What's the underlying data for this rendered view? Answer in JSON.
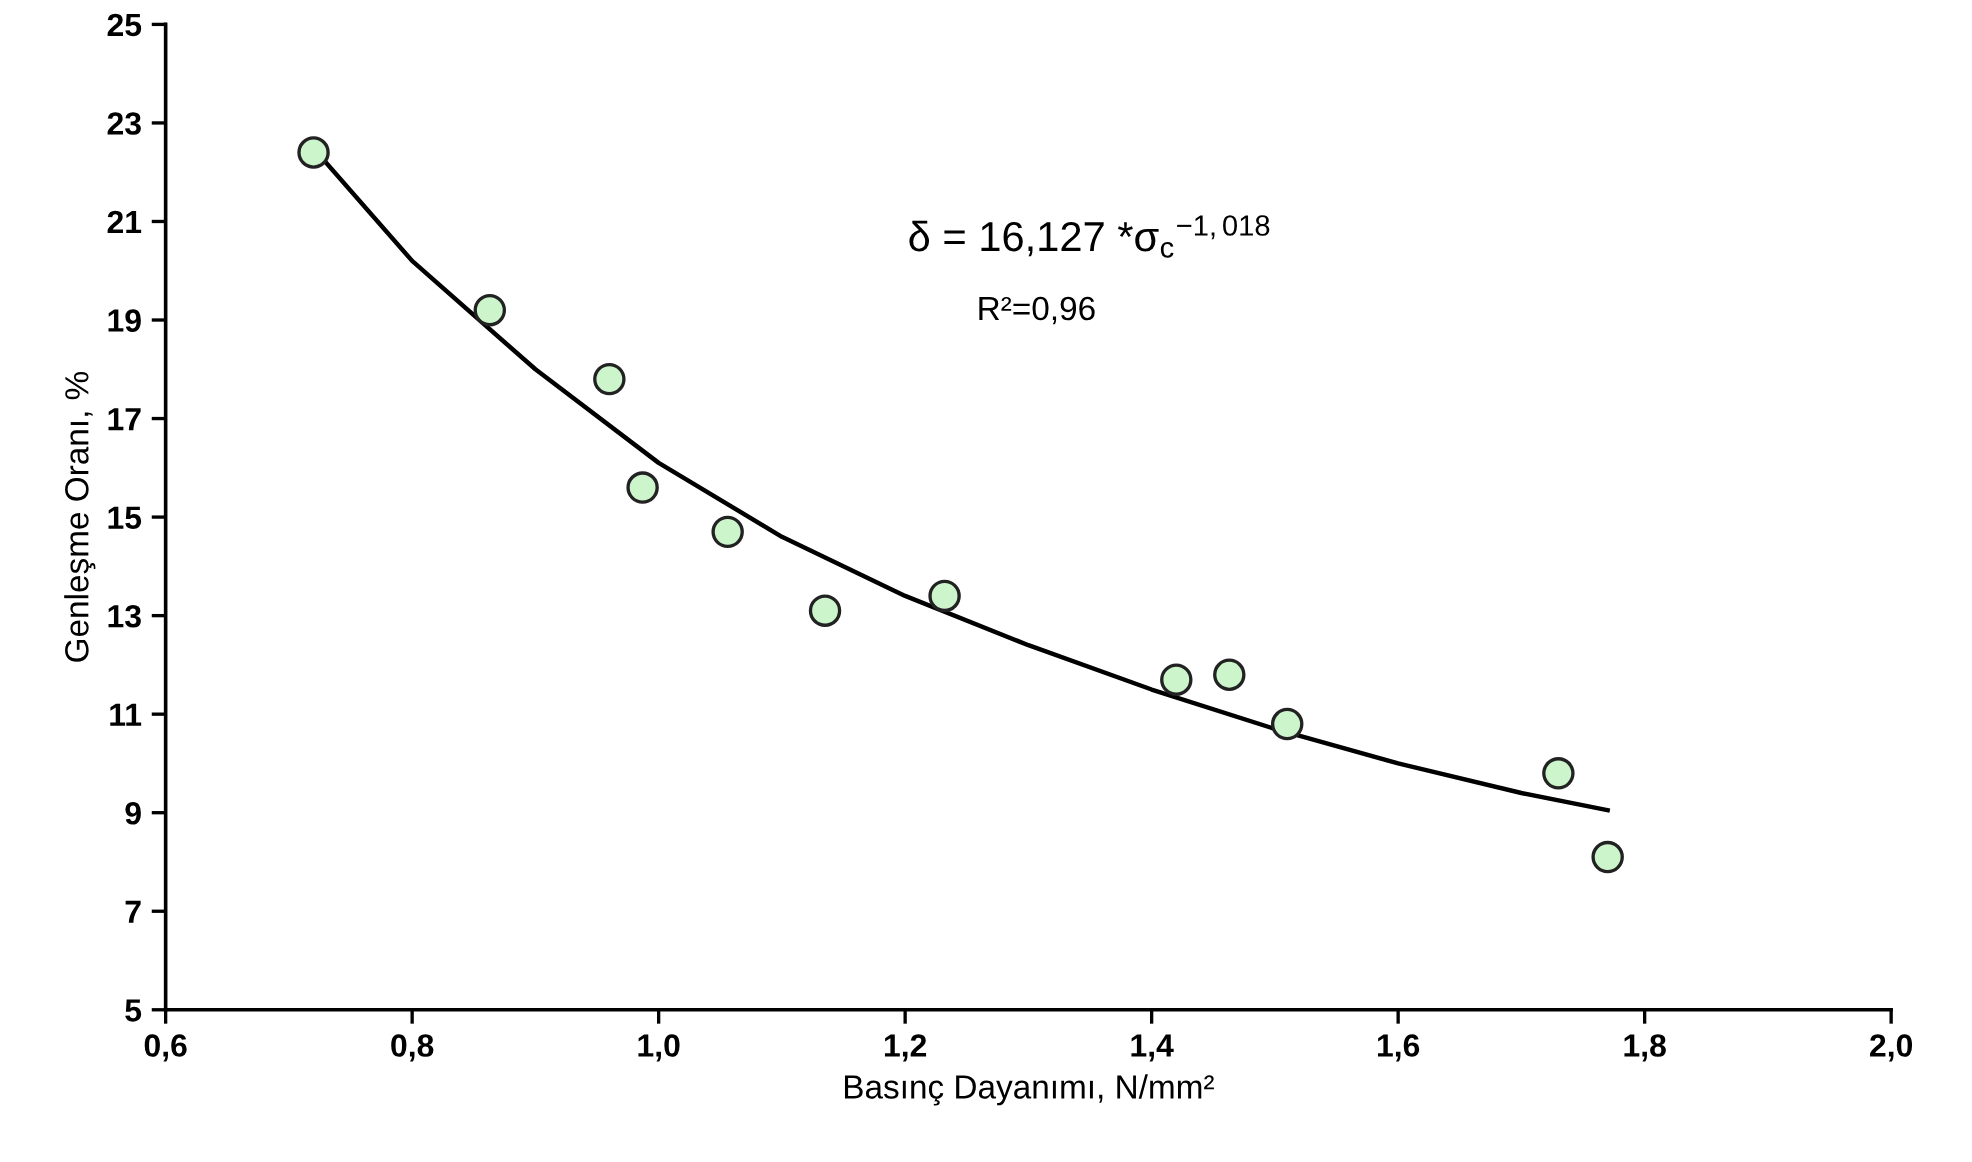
{
  "chart_data": {
    "type": "scatter",
    "xlabel": "Basınç Dayanımı, N/mm²",
    "ylabel": "Genleşme Oranı, %",
    "annotations": [
      "δ = 16,127 *σ$_{c}$$^{−1,018}$",
      "R²=0,96"
    ],
    "series": [
      {
        "color": "#ccf5cc",
        "marker": "circle",
        "x": [
          0.72,
          0.863,
          0.96,
          0.987,
          1.056,
          1.135,
          1.232,
          1.42,
          1.463,
          1.51,
          1.73,
          1.77
        ],
        "values": [
          22.4,
          19.2,
          17.8,
          15.6,
          14.7,
          13.1,
          13.4,
          11.7,
          11.8,
          10.8,
          9.8,
          8.1
        ]
      },
      {
        "type": "line",
        "color": "#000000",
        "marker": "none",
        "line_style": "solid",
        "x": [
          0.73,
          0.8,
          0.9,
          1.0,
          1.1,
          1.2,
          1.3,
          1.4,
          1.5,
          1.6,
          1.7,
          1.77
        ],
        "values": [
          22.2,
          20.2,
          18.0,
          16.1,
          14.6,
          13.4,
          12.4,
          11.5,
          10.7,
          10.0,
          9.4,
          9.05
        ]
      }
    ],
    "xlim": [
      0.6,
      2.0
    ],
    "ylim": [
      5,
      25
    ],
    "xticks": [
      {
        "value": 0.6,
        "label": "0,6"
      },
      {
        "value": 0.8,
        "label": "0,8"
      },
      {
        "value": 1.0,
        "label": "1,0"
      },
      {
        "value": 1.2,
        "label": "1,2"
      },
      {
        "value": 1.4,
        "label": "1,4"
      },
      {
        "value": 1.6,
        "label": "1,6"
      },
      {
        "value": 1.8,
        "label": "1,8"
      },
      {
        "value": 2.0,
        "label": "2,0"
      }
    ],
    "yticks": [
      5,
      7,
      9,
      11,
      13,
      15,
      17,
      19,
      21,
      23,
      25
    ],
    "grid": false
  }
}
